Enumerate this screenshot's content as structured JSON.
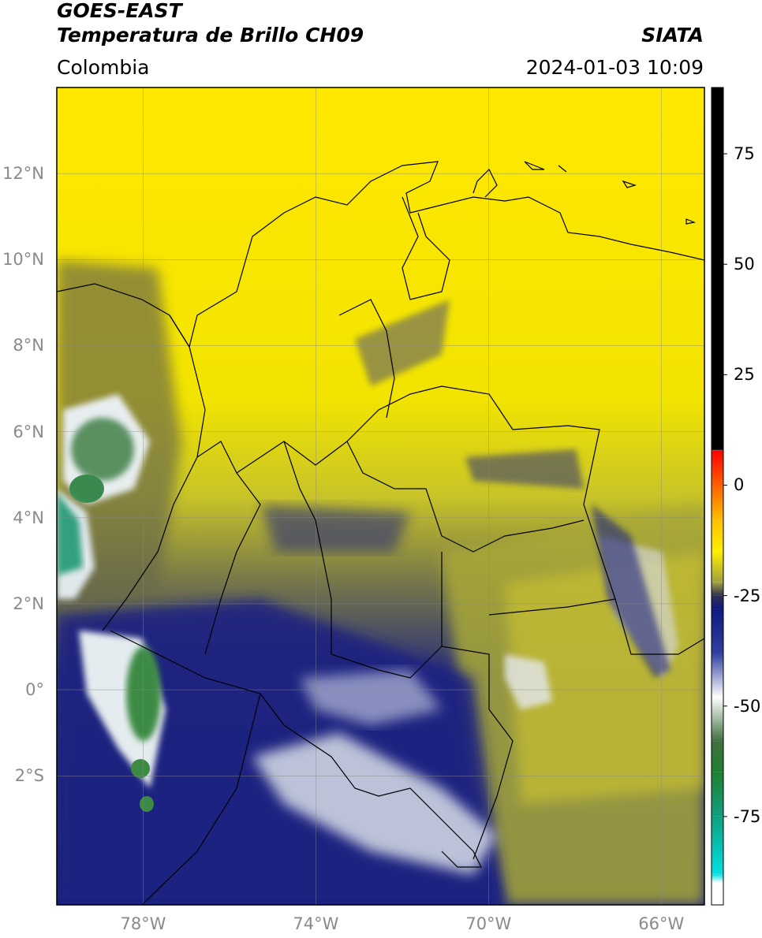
{
  "header": {
    "title_line1": "GOES-EAST",
    "title_line2": "Temperatura de Brillo CH09",
    "brand": "SIATA",
    "region": "Colombia",
    "datetime": "2024-01-03 10:09"
  },
  "map": {
    "lat_ticks": [
      "12°N",
      "10°N",
      "8°N",
      "6°N",
      "4°N",
      "2°N",
      "0°",
      "2°S"
    ],
    "lat_values": [
      12,
      10,
      8,
      6,
      4,
      2,
      0,
      -2
    ],
    "lon_ticks": [
      "78°W",
      "74°W",
      "70°W",
      "66°W"
    ],
    "lon_values": [
      -78,
      -74,
      -70,
      -66
    ],
    "lat_range": [
      -5,
      14
    ],
    "lon_range": [
      -80,
      -65
    ],
    "colors": {
      "warm": "#ffee00",
      "mid": "#b8b830",
      "cold": "#1c2480",
      "very_cold": "#ffffff",
      "coldest": "#3a8a3a"
    }
  },
  "colorbar": {
    "labels": [
      "75",
      "50",
      "25",
      "0",
      "-25",
      "-50",
      "-75"
    ],
    "values": [
      75,
      50,
      25,
      0,
      -25,
      -50,
      -75
    ],
    "range": [
      -95,
      90
    ],
    "stops": [
      {
        "value": 90,
        "color": "#000000"
      },
      {
        "value": 8,
        "color": "#000000"
      },
      {
        "value": 7.9,
        "color": "#ff0000"
      },
      {
        "value": 0,
        "color": "#ff6000"
      },
      {
        "value": -8,
        "color": "#ffc000"
      },
      {
        "value": -15,
        "color": "#ffee00"
      },
      {
        "value": -22,
        "color": "#a0a040"
      },
      {
        "value": -25,
        "color": "#303050"
      },
      {
        "value": -28,
        "color": "#101a80"
      },
      {
        "value": -38,
        "color": "#3040a0"
      },
      {
        "value": -48,
        "color": "#ffffff"
      },
      {
        "value": -58,
        "color": "#407040"
      },
      {
        "value": -65,
        "color": "#208030"
      },
      {
        "value": -75,
        "color": "#10a080"
      },
      {
        "value": -88,
        "color": "#00e0e0"
      },
      {
        "value": -90,
        "color": "#ffffff"
      },
      {
        "value": -95,
        "color": "#ffffff"
      }
    ]
  }
}
